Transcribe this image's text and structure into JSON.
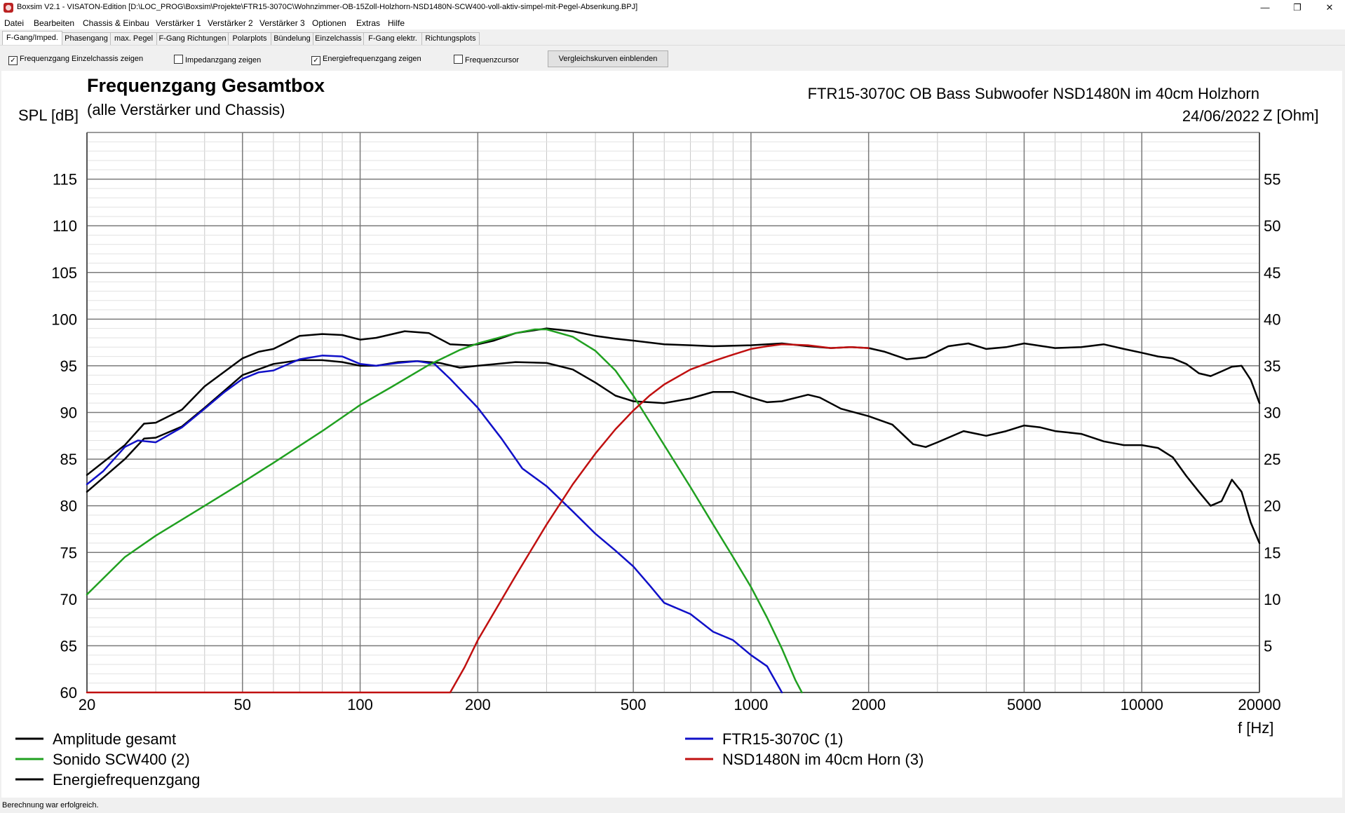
{
  "window": {
    "title": "Boxsim V2.1 - VISATON-Edition [D:\\LOC_PROG\\Boxsim\\Projekte\\FTR15-3070C\\Wohnzimmer-OB-15Zoll-Holzhorn-NSD1480N-SCW400-voll-aktiv-simpel-mit-Pegel-Absenkung.BPJ]",
    "minimize": "—",
    "restore": "❐",
    "close": "✕"
  },
  "menu": [
    "Datei",
    "Bearbeiten",
    "Chassis & Einbau",
    "Verstärker 1",
    "Verstärker 2",
    "Verstärker 3",
    "Optionen",
    "Extras",
    "Hilfe"
  ],
  "tabs": [
    "F-Gang/Imped.",
    "Phasengang",
    "max. Pegel",
    "F-Gang Richtungen",
    "Polarplots",
    "Bündelung",
    "Einzelchassis",
    "F-Gang elektr.",
    "Richtungsplots"
  ],
  "toolbar": {
    "options": [
      {
        "label": "Frequenzgang Einzelchassis zeigen",
        "checked": true
      },
      {
        "label": "Impedanzgang zeigen",
        "checked": false
      },
      {
        "label": "Energiefrequenzgang zeigen",
        "checked": true
      },
      {
        "label": "Frequenzcursor",
        "checked": false
      }
    ],
    "compare_button": "Vergleichskurven einblenden"
  },
  "chart_data": {
    "type": "line",
    "title": "Frequenzgang Gesamtbox",
    "subtitle": "(alle Verstärker und Chassis)",
    "project": "FTR15-3070C OB Bass Subwoofer NSD1480N im 40cm Holzhorn",
    "date": "24/06/2022",
    "xlabel": "f [Hz]",
    "ylabel": "SPL [dB]",
    "y2label": "Z [Ohm]",
    "xscale": "log",
    "xlim": [
      20,
      20000
    ],
    "ylim": [
      60,
      120
    ],
    "y2lim": [
      0,
      60
    ],
    "grid": true,
    "xticks": [
      20,
      50,
      100,
      200,
      500,
      1000,
      2000,
      5000,
      10000,
      20000
    ],
    "yticks": [
      60,
      65,
      70,
      75,
      80,
      85,
      90,
      95,
      100,
      105,
      110,
      115
    ],
    "y2ticks": [
      5,
      10,
      15,
      20,
      25,
      30,
      35,
      40,
      45,
      50,
      55
    ],
    "legend": [
      {
        "name": "Amplitude gesamt",
        "color": "#000000"
      },
      {
        "name": "FTR15-3070C (1)",
        "color": "#1010c8"
      },
      {
        "name": "Sonido SCW400 (2)",
        "color": "#20a020"
      },
      {
        "name": "NSD1480N im 40cm Horn (3)",
        "color": "#c01010"
      },
      {
        "name": "Energiefrequenzgang",
        "color": "#000000"
      }
    ],
    "series": [
      {
        "name": "Amplitude gesamt",
        "color": "#000000",
        "points": [
          [
            20,
            81.5
          ],
          [
            25,
            85
          ],
          [
            28,
            87.2
          ],
          [
            30,
            87.3
          ],
          [
            35,
            88.5
          ],
          [
            40,
            90.5
          ],
          [
            50,
            94
          ],
          [
            60,
            95.2
          ],
          [
            70,
            95.6
          ],
          [
            80,
            95.6
          ],
          [
            90,
            95.4
          ],
          [
            100,
            95
          ],
          [
            110,
            95
          ],
          [
            125,
            95.4
          ],
          [
            140,
            95.5
          ],
          [
            160,
            95.3
          ],
          [
            180,
            94.8
          ],
          [
            200,
            95
          ],
          [
            250,
            95.4
          ],
          [
            300,
            95.3
          ],
          [
            350,
            94.6
          ],
          [
            400,
            93.2
          ],
          [
            450,
            91.8
          ],
          [
            500,
            91.2
          ],
          [
            600,
            91
          ],
          [
            700,
            91.5
          ],
          [
            800,
            92.2
          ],
          [
            900,
            92.2
          ],
          [
            1000,
            91.6
          ],
          [
            1100,
            91.1
          ],
          [
            1200,
            91.2
          ],
          [
            1400,
            91.9
          ],
          [
            1500,
            91.6
          ],
          [
            1700,
            90.4
          ],
          [
            2000,
            89.6
          ],
          [
            2300,
            88.7
          ],
          [
            2600,
            86.6
          ],
          [
            2800,
            86.3
          ],
          [
            3000,
            86.8
          ],
          [
            3500,
            88
          ],
          [
            4000,
            87.5
          ],
          [
            4500,
            88
          ],
          [
            5000,
            88.6
          ],
          [
            5500,
            88.4
          ],
          [
            6000,
            88
          ],
          [
            7000,
            87.7
          ],
          [
            8000,
            86.9
          ],
          [
            9000,
            86.5
          ],
          [
            10000,
            86.5
          ],
          [
            11000,
            86.2
          ],
          [
            12000,
            85.2
          ],
          [
            13000,
            83.2
          ],
          [
            14000,
            81.5
          ],
          [
            15000,
            80
          ],
          [
            16000,
            80.5
          ],
          [
            17000,
            82.8
          ],
          [
            18000,
            81.5
          ],
          [
            19000,
            78.2
          ],
          [
            20000,
            76
          ]
        ]
      },
      {
        "name": "Energiefrequenzgang",
        "color": "#000000",
        "points": [
          [
            20,
            83.3
          ],
          [
            25,
            86.5
          ],
          [
            28,
            88.8
          ],
          [
            30,
            88.9
          ],
          [
            35,
            90.3
          ],
          [
            40,
            92.8
          ],
          [
            50,
            95.8
          ],
          [
            55,
            96.5
          ],
          [
            60,
            96.8
          ],
          [
            70,
            98.2
          ],
          [
            80,
            98.4
          ],
          [
            90,
            98.3
          ],
          [
            100,
            97.8
          ],
          [
            110,
            98
          ],
          [
            130,
            98.7
          ],
          [
            150,
            98.5
          ],
          [
            170,
            97.3
          ],
          [
            190,
            97.2
          ],
          [
            200,
            97.3
          ],
          [
            220,
            97.7
          ],
          [
            250,
            98.5
          ],
          [
            300,
            99
          ],
          [
            350,
            98.7
          ],
          [
            400,
            98.2
          ],
          [
            450,
            97.9
          ],
          [
            500,
            97.7
          ],
          [
            600,
            97.3
          ],
          [
            700,
            97.2
          ],
          [
            800,
            97.1
          ],
          [
            1000,
            97.2
          ],
          [
            1200,
            97.4
          ],
          [
            1400,
            97.1
          ],
          [
            1600,
            96.9
          ],
          [
            1800,
            97
          ],
          [
            2000,
            96.9
          ],
          [
            2200,
            96.5
          ],
          [
            2500,
            95.7
          ],
          [
            2800,
            95.9
          ],
          [
            3200,
            97.1
          ],
          [
            3600,
            97.4
          ],
          [
            4000,
            96.8
          ],
          [
            4500,
            97
          ],
          [
            5000,
            97.4
          ],
          [
            6000,
            96.9
          ],
          [
            7000,
            97
          ],
          [
            8000,
            97.3
          ],
          [
            9000,
            96.8
          ],
          [
            10000,
            96.4
          ],
          [
            11000,
            96
          ],
          [
            12000,
            95.8
          ],
          [
            13000,
            95.2
          ],
          [
            14000,
            94.2
          ],
          [
            15000,
            93.9
          ],
          [
            16000,
            94.4
          ],
          [
            17000,
            94.9
          ],
          [
            18000,
            95
          ],
          [
            19000,
            93.5
          ],
          [
            20000,
            91
          ]
        ]
      },
      {
        "name": "FTR15-3070C (1)",
        "color": "#1010c8",
        "points": [
          [
            20,
            82.3
          ],
          [
            22,
            83.7
          ],
          [
            25,
            86.3
          ],
          [
            27,
            87
          ],
          [
            30,
            86.8
          ],
          [
            35,
            88.4
          ],
          [
            40,
            90.4
          ],
          [
            45,
            92.2
          ],
          [
            50,
            93.6
          ],
          [
            55,
            94.3
          ],
          [
            60,
            94.5
          ],
          [
            70,
            95.7
          ],
          [
            80,
            96.1
          ],
          [
            90,
            96
          ],
          [
            100,
            95.2
          ],
          [
            110,
            95
          ],
          [
            125,
            95.3
          ],
          [
            140,
            95.5
          ],
          [
            155,
            95.2
          ],
          [
            170,
            93.6
          ],
          [
            200,
            90.5
          ],
          [
            230,
            87.2
          ],
          [
            260,
            84
          ],
          [
            300,
            82.1
          ],
          [
            350,
            79.4
          ],
          [
            400,
            77
          ],
          [
            450,
            75.2
          ],
          [
            500,
            73.5
          ],
          [
            550,
            71.5
          ],
          [
            600,
            69.6
          ],
          [
            700,
            68.4
          ],
          [
            800,
            66.5
          ],
          [
            900,
            65.6
          ],
          [
            1000,
            64
          ],
          [
            1100,
            62.8
          ],
          [
            1200,
            60
          ]
        ]
      },
      {
        "name": "Sonido SCW400 (2)",
        "color": "#20a020",
        "points": [
          [
            20,
            70.5
          ],
          [
            25,
            74.5
          ],
          [
            30,
            76.8
          ],
          [
            40,
            80
          ],
          [
            50,
            82.5
          ],
          [
            60,
            84.6
          ],
          [
            80,
            88
          ],
          [
            100,
            90.8
          ],
          [
            120,
            92.7
          ],
          [
            150,
            95.1
          ],
          [
            180,
            96.7
          ],
          [
            200,
            97.4
          ],
          [
            250,
            98.5
          ],
          [
            280,
            98.9
          ],
          [
            300,
            98.9
          ],
          [
            350,
            98.1
          ],
          [
            400,
            96.6
          ],
          [
            450,
            94.5
          ],
          [
            500,
            91.8
          ],
          [
            600,
            86.5
          ],
          [
            700,
            82
          ],
          [
            800,
            78
          ],
          [
            900,
            74.5
          ],
          [
            1000,
            71.3
          ],
          [
            1100,
            68
          ],
          [
            1200,
            64.7
          ],
          [
            1300,
            61.3
          ],
          [
            1350,
            60
          ]
        ]
      },
      {
        "name": "NSD1480N im 40cm Horn (3)",
        "color": "#c01010",
        "points": [
          [
            20,
            60
          ],
          [
            170,
            60
          ],
          [
            185,
            62.7
          ],
          [
            200,
            65.6
          ],
          [
            250,
            72.5
          ],
          [
            300,
            78
          ],
          [
            350,
            82.3
          ],
          [
            400,
            85.6
          ],
          [
            450,
            88.2
          ],
          [
            500,
            90.2
          ],
          [
            550,
            91.8
          ],
          [
            600,
            93
          ],
          [
            700,
            94.6
          ],
          [
            800,
            95.5
          ],
          [
            900,
            96.2
          ],
          [
            1000,
            96.8
          ],
          [
            1100,
            97.1
          ],
          [
            1200,
            97.3
          ],
          [
            1400,
            97.2
          ],
          [
            1600,
            96.9
          ],
          [
            1800,
            97
          ],
          [
            2000,
            96.9
          ]
        ]
      }
    ]
  },
  "status": "Berechnung war erfolgreich."
}
